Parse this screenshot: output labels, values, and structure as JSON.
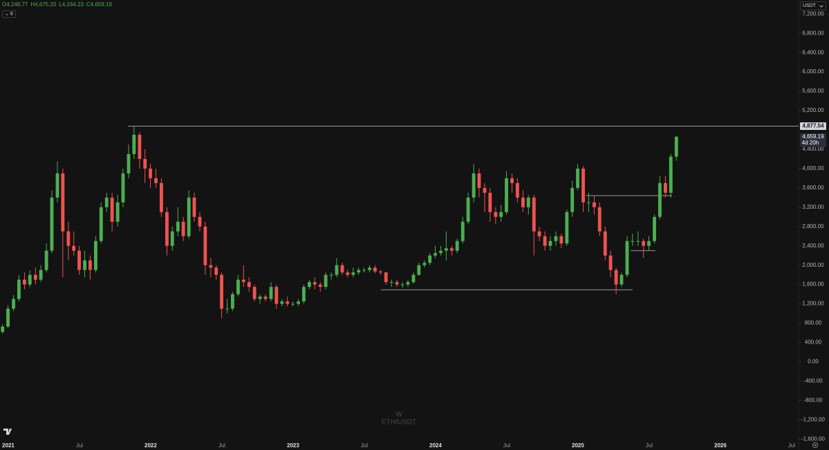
{
  "chart_data": {
    "type": "candlestick",
    "symbol": "ETH/USDT",
    "interval": "W",
    "currency": "USDT",
    "indicators_count": "6",
    "legend": [
      "O4,248.77",
      "H4,675.20",
      "L4,164.23",
      "C4,659.19"
    ],
    "up_color": "#4caf50",
    "down_color": "#ef5350",
    "x": [
      2020.96,
      2020.998,
      2021.037,
      2021.075,
      2021.114,
      2021.152,
      2021.191,
      2021.229,
      2021.268,
      2021.306,
      2021.345,
      2021.383,
      2021.422,
      2021.46,
      2021.498,
      2021.537,
      2021.575,
      2021.614,
      2021.652,
      2021.691,
      2021.729,
      2021.768,
      2021.806,
      2021.845,
      2021.883,
      2021.922,
      2021.96,
      2021.998,
      2022.037,
      2022.075,
      2022.114,
      2022.152,
      2022.191,
      2022.229,
      2022.268,
      2022.306,
      2022.345,
      2022.383,
      2022.422,
      2022.46,
      2022.498,
      2022.537,
      2022.575,
      2022.614,
      2022.652,
      2022.691,
      2022.729,
      2022.768,
      2022.806,
      2022.845,
      2022.883,
      2022.922,
      2022.96,
      2022.998,
      2023.037,
      2023.075,
      2023.114,
      2023.152,
      2023.191,
      2023.229,
      2023.268,
      2023.306,
      2023.345,
      2023.383,
      2023.422,
      2023.46,
      2023.498,
      2023.537,
      2023.575,
      2023.614,
      2023.652,
      2023.691,
      2023.729,
      2023.768,
      2023.806,
      2023.845,
      2023.883,
      2023.922,
      2023.96,
      2023.998,
      2024.037,
      2024.075,
      2024.114,
      2024.152,
      2024.191,
      2024.229,
      2024.268,
      2024.306,
      2024.345,
      2024.383,
      2024.422,
      2024.46,
      2024.498,
      2024.537,
      2024.575,
      2024.614,
      2024.652,
      2024.691,
      2024.729,
      2024.768,
      2024.806,
      2024.845,
      2024.883,
      2024.922,
      2024.96,
      2024.998,
      2025.037,
      2025.075,
      2025.114,
      2025.152,
      2025.191,
      2025.229,
      2025.268,
      2025.306,
      2025.345,
      2025.383,
      2025.422,
      2025.46,
      2025.498,
      2025.537,
      2025.575,
      2025.614,
      2025.652,
      2025.691
    ],
    "open": [
      620,
      730,
      1100,
      1300,
      1700,
      1600,
      1800,
      1700,
      1900,
      2300,
      3400,
      3900,
      2700,
      2400,
      2300,
      1900,
      2100,
      1900,
      2500,
      3200,
      3400,
      2900,
      3300,
      3900,
      4300,
      4700,
      4200,
      4000,
      3800,
      3700,
      3100,
      2400,
      2700,
      2900,
      2600,
      3400,
      3000,
      2800,
      2000,
      1950,
      1800,
      1100,
      1100,
      1400,
      1700,
      1650,
      1550,
      1300,
      1350,
      1300,
      1550,
      1200,
      1250,
      1200,
      1200,
      1250,
      1550,
      1650,
      1600,
      1550,
      1800,
      1800,
      2000,
      1850,
      1800,
      1850,
      1900,
      1900,
      1950,
      1870,
      1850,
      1650,
      1650,
      1600,
      1600,
      1650,
      1800,
      2000,
      2050,
      2200,
      2250,
      2300,
      2350,
      2300,
      2500,
      2900,
      3400,
      3900,
      3600,
      3500,
      3100,
      3000,
      3100,
      3800,
      3700,
      3400,
      3200,
      3400,
      2700,
      2600,
      2400,
      2500,
      2600,
      2450,
      3100,
      3600,
      4000,
      3300,
      3300,
      3200,
      2700,
      2200,
      1900,
      1600,
      1800,
      2500,
      2500,
      2500,
      2400,
      2500,
      3000,
      3700,
      3500,
      4248.77
    ],
    "high": [
      780,
      1170,
      1380,
      1800,
      1850,
      1900,
      1950,
      2000,
      2450,
      3550,
      4150,
      4000,
      2900,
      2700,
      2400,
      2300,
      2200,
      2600,
      3300,
      3500,
      3500,
      3450,
      4000,
      4500,
      4870,
      4750,
      4400,
      4100,
      4000,
      3800,
      3200,
      2800,
      3200,
      3000,
      3550,
      3500,
      3100,
      2900,
      2150,
      2000,
      1850,
      1300,
      1450,
      1800,
      2000,
      1750,
      1600,
      1400,
      1400,
      1650,
      1600,
      1300,
      1350,
      1250,
      1300,
      1600,
      1700,
      1750,
      1650,
      1850,
      1850,
      2150,
      2050,
      1900,
      1950,
      1950,
      1950,
      2000,
      2000,
      1900,
      1870,
      1700,
      1700,
      1650,
      1700,
      1850,
      2050,
      2100,
      2250,
      2400,
      2400,
      2700,
      2400,
      2550,
      3000,
      3500,
      4100,
      4000,
      3700,
      3600,
      3200,
      3250,
      3950,
      3900,
      3800,
      3550,
      3450,
      3450,
      2800,
      2700,
      2600,
      2700,
      2650,
      3150,
      3750,
      4100,
      4050,
      3500,
      3450,
      3300,
      2800,
      2300,
      1950,
      1850,
      2600,
      2650,
      2700,
      2550,
      2600,
      3050,
      3850,
      3850,
      4300,
      4675.2
    ],
    "low": [
      580,
      700,
      1050,
      1250,
      1500,
      1550,
      1600,
      1650,
      1850,
      2250,
      3300,
      1750,
      2100,
      2200,
      1800,
      1750,
      1700,
      1850,
      2450,
      3100,
      2700,
      2800,
      3200,
      3800,
      4200,
      4000,
      3700,
      3600,
      3600,
      3000,
      2200,
      2300,
      2600,
      2500,
      2550,
      2900,
      2700,
      1800,
      1750,
      1700,
      900,
      1000,
      1050,
      1350,
      1550,
      1450,
      1250,
      1200,
      1250,
      1250,
      1100,
      1150,
      1150,
      1150,
      1150,
      1200,
      1500,
      1500,
      1450,
      1500,
      1700,
      1750,
      1800,
      1750,
      1750,
      1800,
      1850,
      1850,
      1830,
      1800,
      1600,
      1550,
      1550,
      1530,
      1550,
      1620,
      1780,
      1950,
      2000,
      2150,
      2200,
      2100,
      2200,
      2250,
      2450,
      2850,
      3300,
      3400,
      3100,
      2900,
      2850,
      2900,
      3050,
      3500,
      3300,
      3100,
      3050,
      2200,
      2500,
      2300,
      2300,
      2400,
      2350,
      2400,
      3000,
      3550,
      3100,
      3100,
      3050,
      2600,
      2100,
      1750,
      1400,
      1550,
      1750,
      2400,
      2400,
      2150,
      2300,
      2450,
      2950,
      3400,
      3400,
      4164.23
    ],
    "close": [
      730,
      1100,
      1300,
      1700,
      1600,
      1800,
      1700,
      1900,
      2300,
      3400,
      3900,
      2700,
      2400,
      2300,
      1900,
      2100,
      1900,
      2500,
      3200,
      3400,
      2900,
      3300,
      3900,
      4300,
      4700,
      4200,
      4000,
      3800,
      3700,
      3100,
      2400,
      2700,
      2900,
      2600,
      3400,
      3000,
      2800,
      2000,
      1950,
      1800,
      1100,
      1100,
      1400,
      1700,
      1650,
      1550,
      1300,
      1350,
      1300,
      1550,
      1200,
      1250,
      1200,
      1200,
      1250,
      1550,
      1650,
      1600,
      1550,
      1800,
      1800,
      2000,
      1850,
      1800,
      1850,
      1900,
      1900,
      1950,
      1870,
      1850,
      1650,
      1650,
      1600,
      1600,
      1650,
      1800,
      2000,
      2050,
      2200,
      2250,
      2300,
      2350,
      2300,
      2500,
      2900,
      3400,
      3900,
      3600,
      3500,
      3100,
      3000,
      3100,
      3800,
      3700,
      3400,
      3200,
      3400,
      2700,
      2600,
      2400,
      2500,
      2600,
      2450,
      3100,
      3600,
      4000,
      3300,
      3300,
      3200,
      2700,
      2200,
      1900,
      1600,
      1800,
      2500,
      2500,
      2500,
      2400,
      2500,
      3000,
      3700,
      3500,
      4248.77,
      4659.19
    ],
    "levels": [
      {
        "value": 4877.54,
        "label": "4,877.54",
        "x": [
          2021.84,
          2026.549
        ]
      },
      {
        "value": 1490,
        "x": [
          2023.617,
          2025.383
        ]
      },
      {
        "value": 3440,
        "x": [
          2025.058,
          2025.66
        ]
      },
      {
        "value": 2300,
        "x": [
          2025.37,
          2025.544
        ]
      }
    ],
    "last_price": {
      "value": 4659.19,
      "label": "4,659.19"
    },
    "countdown": "4d 20h",
    "xlim": [
      2020.942,
      2026.549
    ],
    "xticks": [
      2021,
      {
        "value": 2021.5,
        "label": "Jul"
      },
      2022,
      {
        "value": 2022.5,
        "label": "Jul"
      },
      2023,
      {
        "value": 2023.5,
        "label": "Jul"
      },
      2024,
      {
        "value": 2024.5,
        "label": "Jul"
      },
      2025,
      {
        "value": 2025.5,
        "label": "Jul"
      },
      2026,
      {
        "value": 2026.5,
        "label": "Jul"
      }
    ],
    "ylim": [
      -1740,
      7490
    ],
    "yticks": [
      {
        "value": 7200,
        "label": "7,200.00"
      },
      {
        "value": 6800,
        "label": "6,800.00"
      },
      {
        "value": 6400,
        "label": "6,400.00"
      },
      {
        "value": 6000,
        "label": "6,000.00"
      },
      {
        "value": 5600,
        "label": "5,600.00"
      },
      {
        "value": 5200,
        "label": "5,200.00"
      },
      {
        "value": 4400,
        "label": "4,400.00"
      },
      {
        "value": 4000,
        "label": "4,000.00"
      },
      {
        "value": 3600,
        "label": "3,600.00"
      },
      {
        "value": 3200,
        "label": "3,200.00"
      },
      {
        "value": 2800,
        "label": "2,800.00"
      },
      {
        "value": 2400,
        "label": "2,400.00"
      },
      {
        "value": 2000,
        "label": "2,000.00"
      },
      {
        "value": 1600,
        "label": "1,600.00"
      },
      {
        "value": 1200,
        "label": "1,200.00"
      },
      {
        "value": 800,
        "label": "800.00"
      },
      {
        "value": 400,
        "label": "400.00"
      },
      {
        "value": 0,
        "label": "0.00"
      },
      {
        "value": -400,
        "label": "-400.00"
      },
      {
        "value": -800,
        "label": "-800.00"
      },
      {
        "value": -1200,
        "label": "-1,200.00"
      },
      {
        "value": -1600,
        "label": "-1,600.00"
      }
    ],
    "grid": false
  }
}
